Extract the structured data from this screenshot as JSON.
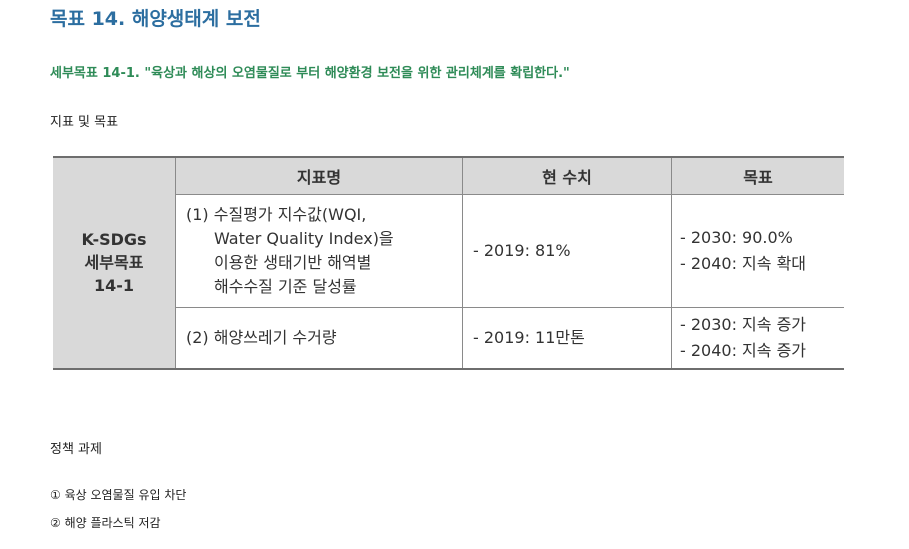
{
  "goal_title": "목표 14. 해양생태계 보전",
  "sub_goal": "세부목표 14-1. \"육상과 해상의 오염물질로 부터 해양환경 보전을 위한 관리체계를 확립한다.\"",
  "indicators_label": "지표 및 목표",
  "table": {
    "side_header": [
      "K-SDGs",
      "세부목표",
      "14-1"
    ],
    "headers": [
      "지표명",
      "현 수치",
      "목표"
    ],
    "rows": [
      {
        "indicator": [
          "(1) 수질평가 지수값(WQI,",
          "Water Quality Index)을",
          "이용한 생태기반 해역별",
          "해수수질 기준 달성률"
        ],
        "current": "- 2019: 81%",
        "targets": [
          "- 2030: 90.0%",
          "- 2040: 지속 확대"
        ]
      },
      {
        "indicator": [
          "(2) 해양쓰레기 수거량"
        ],
        "current": "- 2019: 11만톤",
        "targets": [
          "- 2030: 지속 증가",
          "- 2040: 지속 증가"
        ]
      }
    ]
  },
  "policy_label": "정책 과제",
  "policies": [
    "① 육상 오염물질 유입 차단",
    "② 해양 플라스틱 저감"
  ],
  "colors": {
    "title": "#2c6ea0",
    "sub_goal": "#2e8b57",
    "header_bg": "#d9d9d9"
  }
}
